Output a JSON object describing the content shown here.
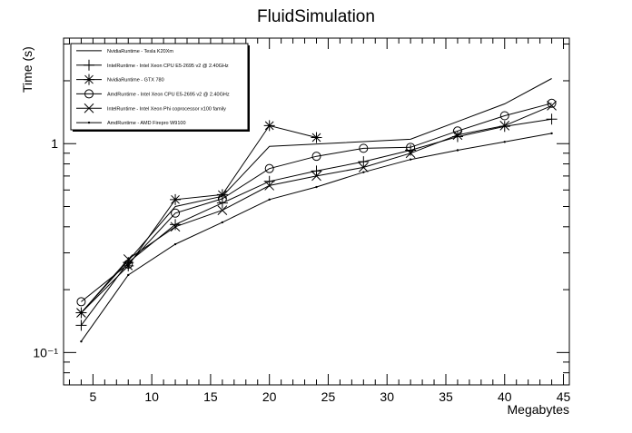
{
  "chart_data": {
    "type": "line",
    "title": "FluidSimulation",
    "xlabel": "Megabytes",
    "ylabel": "Time (s)",
    "y_scale": "log",
    "xlim": [
      2.5,
      45.5
    ],
    "ylim": [
      0.07,
      3.2
    ],
    "x_ticks": [
      5,
      10,
      15,
      20,
      25,
      30,
      35,
      40,
      45
    ],
    "x_tick_labels": [
      "5",
      "10",
      "15",
      "20",
      "25",
      "30",
      "35",
      "40",
      "45"
    ],
    "y_ticks": [
      0.1,
      1
    ],
    "y_tick_labels": [
      "10⁻¹",
      "1"
    ],
    "grid": false,
    "legend_position": "top-left",
    "series": [
      {
        "name": "NvidiaRuntime - Tesla K20Xm",
        "marker": "none",
        "x": [
          4,
          8,
          12,
          16,
          20,
          32,
          40,
          44
        ],
        "y": [
          0.155,
          0.275,
          0.5,
          0.56,
          0.97,
          1.05,
          1.55,
          2.05
        ]
      },
      {
        "name": "IntelRuntime - Intel Xeon CPU E5-2695 v2 @ 2.40GHz",
        "marker": "plus",
        "x": [
          4,
          8,
          12,
          16,
          20,
          24,
          28,
          32,
          36,
          40,
          44
        ],
        "y": [
          0.135,
          0.27,
          0.41,
          0.52,
          0.66,
          0.74,
          0.82,
          0.93,
          1.08,
          1.21,
          1.31
        ]
      },
      {
        "name": "NvidiaRuntime - GTX 780",
        "marker": "asterisk",
        "x": [
          4,
          8,
          12,
          16,
          20,
          24
        ],
        "y": [
          0.155,
          0.26,
          0.54,
          0.57,
          1.22,
          1.07
        ]
      },
      {
        "name": "AmdRuntime - Intel Xeon CPU E5-2695 v2 @ 2.40GHz",
        "marker": "circle",
        "x": [
          4,
          8,
          12,
          16,
          20,
          24,
          28,
          32,
          36,
          40,
          44
        ],
        "y": [
          0.175,
          0.265,
          0.465,
          0.545,
          0.76,
          0.87,
          0.95,
          0.96,
          1.15,
          1.36,
          1.56
        ]
      },
      {
        "name": "IntelRuntime - Intel Xeon Phi coprocessor x100 family",
        "marker": "cross",
        "x": [
          4,
          8,
          12,
          16,
          20,
          24,
          28,
          32,
          36,
          40,
          44
        ],
        "y": [
          0.155,
          0.28,
          0.4,
          0.48,
          0.63,
          0.7,
          0.77,
          0.9,
          1.1,
          1.22,
          1.52
        ]
      },
      {
        "name": "AmdRuntime - AMD Firepro W9100",
        "marker": "dot",
        "x": [
          4,
          8,
          12,
          16,
          20,
          24,
          28,
          32,
          36,
          40,
          44
        ],
        "y": [
          0.113,
          0.235,
          0.33,
          0.42,
          0.54,
          0.62,
          0.73,
          0.84,
          0.93,
          1.02,
          1.12
        ]
      }
    ]
  }
}
